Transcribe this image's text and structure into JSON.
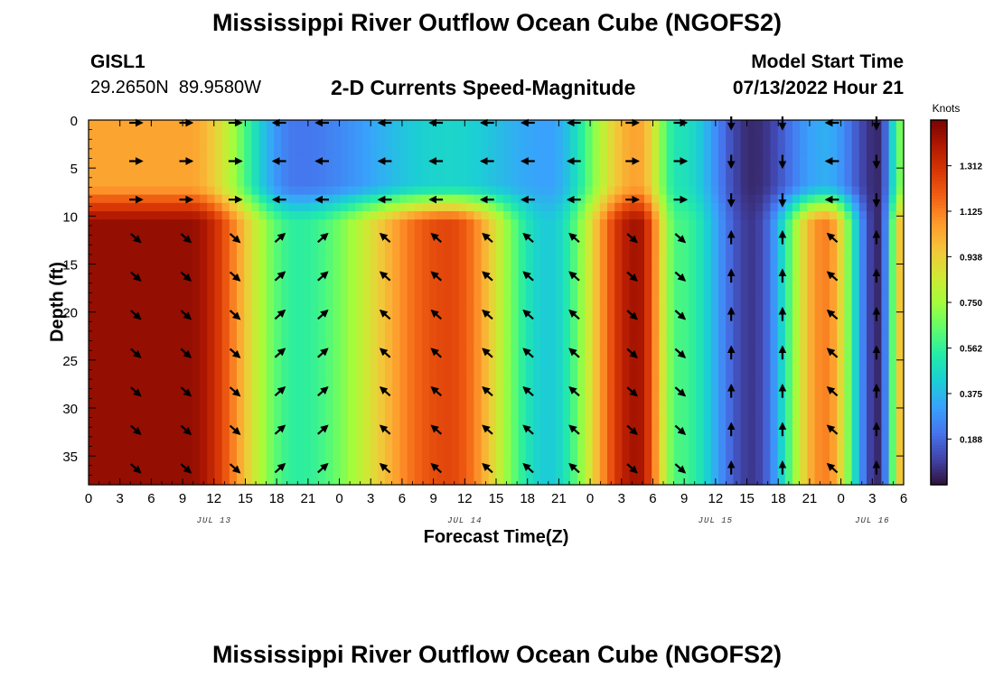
{
  "header": {
    "title": "Mississippi River Outflow Ocean Cube (NGOFS2)",
    "station": "GISL1",
    "coords": "29.2650N  89.9580W",
    "subtitle": "2-D Currents Speed-Magnitude",
    "model_start_label": "Model Start Time",
    "model_start_value": "07/13/2022 Hour 21"
  },
  "footer": {
    "title": "Mississippi River Outflow Ocean Cube (NGOFS2)"
  },
  "chart_data": {
    "type": "heatmap",
    "title": "2-D Currents Speed-Magnitude",
    "xlabel": "Forecast Time(Z)",
    "ylabel": "Depth (ft)",
    "x_ticks": [
      "0",
      "3",
      "6",
      "9",
      "12",
      "15",
      "18",
      "21",
      "0",
      "3",
      "6",
      "9",
      "12",
      "15",
      "18",
      "21",
      "0",
      "3",
      "6",
      "9",
      "12",
      "15",
      "18",
      "21",
      "0",
      "3",
      "6"
    ],
    "x_range_hours": [
      0,
      78
    ],
    "date_labels": [
      {
        "label": "JUL 13",
        "hour": 12
      },
      {
        "label": "JUL 14",
        "hour": 36
      },
      {
        "label": "JUL 15",
        "hour": 60
      },
      {
        "label": "JUL 16",
        "hour": 75
      }
    ],
    "y_ticks": [
      0,
      5,
      10,
      15,
      20,
      25,
      30,
      35
    ],
    "y_range_ft": [
      0,
      38
    ],
    "colorbar": {
      "label": "Knots",
      "ticks": [
        "1.312",
        "1.125",
        "0.938",
        "0.750",
        "0.562",
        "0.375",
        "0.188"
      ],
      "tick_values": [
        1.312,
        1.125,
        0.938,
        0.75,
        0.562,
        0.375,
        0.188
      ],
      "range": [
        0,
        1.5
      ],
      "colors": [
        "#30123b",
        "#4145ab",
        "#4675ed",
        "#39a2fc",
        "#1bcfd4",
        "#24eca6",
        "#61fc6c",
        "#a4fc3b",
        "#d1e834",
        "#f3c63a",
        "#fe9b2d",
        "#f36315",
        "#d93806",
        "#b11901",
        "#7a0403"
      ]
    },
    "surface_layer_ft": [
      0,
      8.5
    ],
    "speed_events": [
      {
        "hour": 9.5,
        "surface": 1.05,
        "deep": 1.45,
        "surface_dir": "east",
        "deep_dir": "southeast"
      },
      {
        "hour": 20,
        "surface": 0.22,
        "deep": 0.55,
        "surface_dir": "west",
        "deep_dir": "northeast"
      },
      {
        "hour": 34.5,
        "surface": 0.45,
        "deep": 1.25,
        "surface_dir": "west",
        "deep_dir": "northwest"
      },
      {
        "hour": 44,
        "surface": 0.32,
        "deep": 0.42,
        "surface_dir": "west",
        "deep_dir": "northwest"
      },
      {
        "hour": 52.5,
        "surface": 1.05,
        "deep": 1.42,
        "surface_dir": "east",
        "deep_dir": "southeast"
      },
      {
        "hour": 56.5,
        "surface": 0.5,
        "deep": 0.6,
        "surface_dir": "east",
        "deep_dir": "southeast"
      },
      {
        "hour": 63.5,
        "surface": 0.05,
        "deep": 0.08,
        "surface_dir": "south",
        "deep_dir": "north"
      },
      {
        "hour": 70.5,
        "surface": 0.35,
        "deep": 1.12,
        "surface_dir": "west",
        "deep_dir": "northwest"
      },
      {
        "hour": 75.5,
        "surface": 0.05,
        "deep": 0.05,
        "surface_dir": "south",
        "deep_dir": "north"
      },
      {
        "hour": 78,
        "surface": 0.7,
        "deep": 1.0,
        "surface_dir": "east",
        "deep_dir": "southeast"
      }
    ],
    "arrow_hours": [
      4.5,
      9.3,
      14,
      18.3,
      22.4,
      28.4,
      33.3,
      38.2,
      42.1,
      46.5,
      52,
      56.6,
      61.5,
      66.4,
      71.2,
      75.4
    ],
    "arrow_depths_ft": [
      0,
      4,
      8,
      12,
      16,
      20,
      24,
      28,
      32,
      36
    ]
  }
}
